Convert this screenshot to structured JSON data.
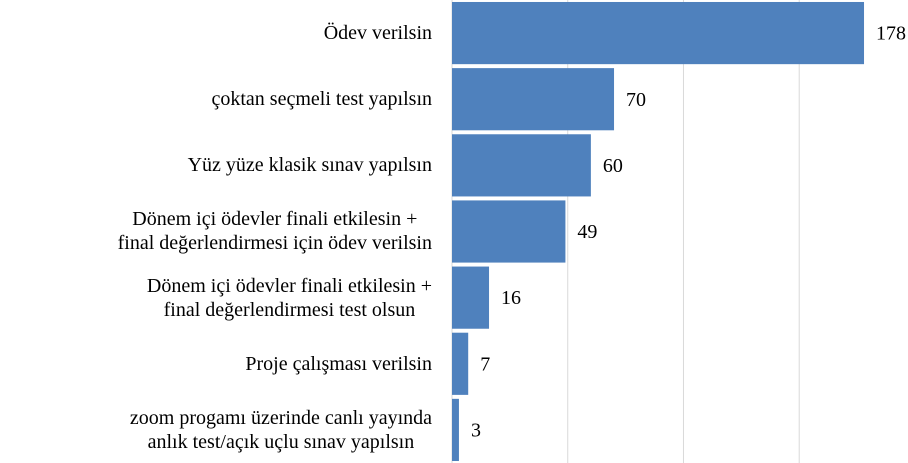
{
  "chart_data": {
    "type": "bar",
    "orientation": "horizontal",
    "categories": [
      "Ödev verilsin",
      "çoktan seçmeli test yapılsın",
      "Yüz yüze klasik sınav yapılsın",
      "Dönem içi ödevler finali etkilesin +\nfinal değerlendirmesi için ödev verilsin",
      "Dönem içi ödevler finali etkilesin +\nfinal değerlendirmesi test olsun",
      "Proje çalışması verilsin",
      "zoom progamı üzerinde canlı yayında\nanlık test/açık uçlu sınav yapılsın"
    ],
    "values": [
      178,
      70,
      60,
      49,
      16,
      7,
      3
    ],
    "color": "#4f81bd",
    "xlim": [
      0,
      197
    ],
    "xticks": [
      0,
      50,
      100,
      150
    ],
    "grid": true
  }
}
